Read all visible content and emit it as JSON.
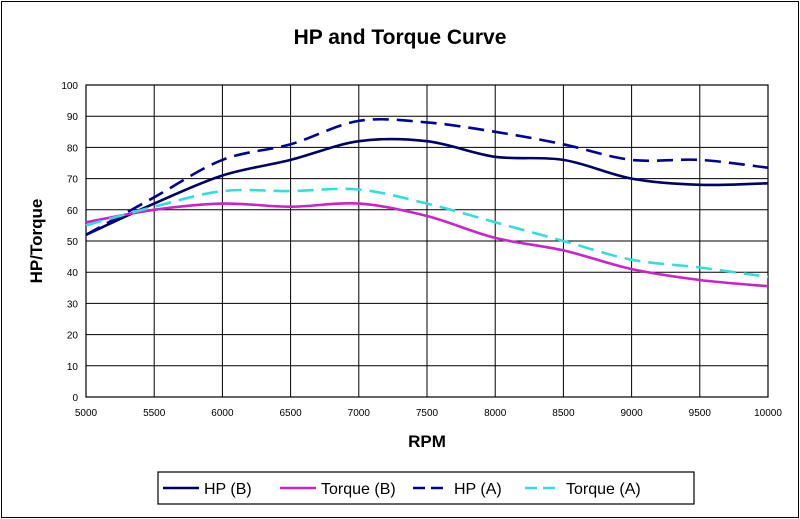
{
  "chart_data": {
    "type": "line",
    "title": "HP and Torque Curve",
    "xlabel": "RPM",
    "ylabel": "HP/Torque",
    "xlim": [
      5000,
      10000
    ],
    "ylim": [
      0,
      100
    ],
    "x_ticks": [
      5000,
      5500,
      6000,
      6500,
      7000,
      7500,
      8000,
      8500,
      9000,
      9500,
      10000
    ],
    "y_ticks": [
      0,
      10,
      20,
      30,
      40,
      50,
      60,
      70,
      80,
      90,
      100
    ],
    "grid": true,
    "legend_position": "bottom",
    "series": [
      {
        "name": "HP (B)",
        "color": "#000066",
        "dash": "solid",
        "points": [
          [
            5000,
            52
          ],
          [
            5500,
            62
          ],
          [
            6000,
            71
          ],
          [
            6500,
            76
          ],
          [
            7000,
            82
          ],
          [
            7500,
            82
          ],
          [
            8000,
            77
          ],
          [
            8500,
            76
          ],
          [
            9000,
            70
          ],
          [
            9500,
            68
          ],
          [
            10000,
            68.5
          ]
        ]
      },
      {
        "name": "Torque (B)",
        "color": "#cc22cc",
        "dash": "solid",
        "points": [
          [
            5000,
            56
          ],
          [
            5500,
            60
          ],
          [
            6000,
            62
          ],
          [
            6500,
            61
          ],
          [
            7000,
            62
          ],
          [
            7500,
            58
          ],
          [
            8000,
            51
          ],
          [
            8500,
            47
          ],
          [
            9000,
            41
          ],
          [
            9500,
            37.5
          ],
          [
            10000,
            35.5
          ]
        ]
      },
      {
        "name": "HP (A)",
        "color": "#000099",
        "dash": "dashed",
        "points": [
          [
            5000,
            52
          ],
          [
            5500,
            64
          ],
          [
            6000,
            76
          ],
          [
            6500,
            81
          ],
          [
            7000,
            88.5
          ],
          [
            7500,
            88
          ],
          [
            8000,
            85
          ],
          [
            8500,
            81
          ],
          [
            9000,
            76
          ],
          [
            9500,
            76
          ],
          [
            10000,
            73.5
          ]
        ]
      },
      {
        "name": "Torque (A)",
        "color": "#33dddd",
        "dash": "dashed",
        "points": [
          [
            5000,
            55
          ],
          [
            5500,
            61
          ],
          [
            6000,
            66
          ],
          [
            6500,
            66
          ],
          [
            7000,
            66.5
          ],
          [
            7500,
            62
          ],
          [
            8000,
            56
          ],
          [
            8500,
            50
          ],
          [
            9000,
            44
          ],
          [
            9500,
            41.5
          ],
          [
            10000,
            38.5
          ]
        ]
      }
    ]
  }
}
